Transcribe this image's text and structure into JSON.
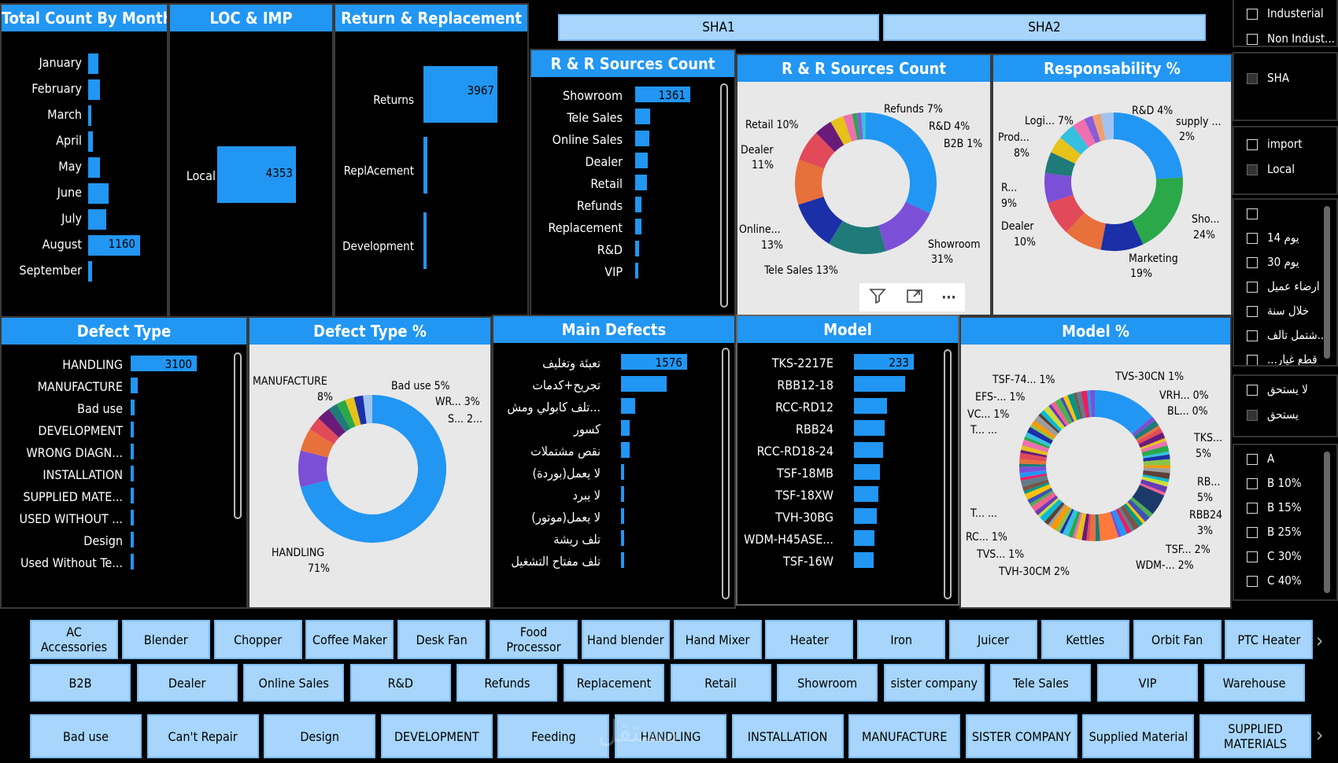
{
  "month_panel": {
    "title": "Total Count By Month",
    "months": [
      "January",
      "February",
      "March",
      "April",
      "May",
      "June",
      "July",
      "August",
      "September"
    ],
    "values": [
      220,
      270,
      40,
      100,
      260,
      450,
      400,
      1160,
      80
    ],
    "label_value": "1160"
  },
  "loc_panel": {
    "title": "LOC & IMP",
    "category": "Local",
    "value": "4353"
  },
  "rr_panel": {
    "title": "Return & Replacement",
    "categories": [
      "Returns",
      "ReplAcement",
      "Development"
    ],
    "values": [
      3967,
      190,
      130
    ],
    "label_value": "3967"
  },
  "top_buttons": {
    "sha1": "SHA1",
    "sha2": "SHA2"
  },
  "sources_count": {
    "title": "R & R Sources Count",
    "categories": [
      "Showroom",
      "Tele Sales",
      "Online Sales",
      "Dealer",
      "Retail",
      "Refunds",
      "Replacement",
      "R&D",
      "VIP"
    ],
    "values": [
      1361,
      370,
      350,
      320,
      300,
      160,
      150,
      100,
      60
    ],
    "label_value": "1361"
  },
  "sources_donut": {
    "title": "R & R Sources Count",
    "labels": [
      "Refunds 7%",
      "R&D 4%",
      "B2B 1%",
      "Retail 10%",
      "Dealer",
      "11%",
      "Online...",
      "13%",
      "Tele Sales 13%",
      "Showroom",
      "31%"
    ],
    "slices": [
      {
        "v": 31,
        "c": "#2196f3"
      },
      {
        "v": 13,
        "c": "#7b4fd6"
      },
      {
        "v": 13,
        "c": "#1f7a7a"
      },
      {
        "v": 11,
        "c": "#1b2fa8"
      },
      {
        "v": 10,
        "c": "#e8703a"
      },
      {
        "v": 7,
        "c": "#e24a5a"
      },
      {
        "v": 4,
        "c": "#6a1b7a"
      },
      {
        "v": 3,
        "c": "#e6c21a"
      },
      {
        "v": 2,
        "c": "#ef6fb0"
      },
      {
        "v": 1,
        "c": "#2aa84a"
      },
      {
        "v": 1,
        "c": "#8a5cd6"
      },
      {
        "v": 1,
        "c": "#35c0e0"
      }
    ]
  },
  "resp_donut": {
    "title": "Responsability %",
    "labels": [
      "R&D 4%",
      "supply ...",
      "2%",
      "Logi... 7%",
      "Prod...",
      "8%",
      "R...",
      "9%",
      "Dealer",
      "10%",
      "Sho...",
      "24%",
      "Marketing",
      "19%"
    ],
    "slices": [
      {
        "v": 24,
        "c": "#2196f3"
      },
      {
        "v": 19,
        "c": "#2aa84a"
      },
      {
        "v": 10,
        "c": "#1b2fa8"
      },
      {
        "v": 9,
        "c": "#e8703a"
      },
      {
        "v": 8,
        "c": "#e24a5a"
      },
      {
        "v": 7,
        "c": "#7b4fd6"
      },
      {
        "v": 5,
        "c": "#1f7a7a"
      },
      {
        "v": 4,
        "c": "#e6c21a"
      },
      {
        "v": 4,
        "c": "#35c0e0"
      },
      {
        "v": 3,
        "c": "#ef6fb0"
      },
      {
        "v": 2,
        "c": "#8a5cd6"
      },
      {
        "v": 2,
        "c": "#f0a070"
      },
      {
        "v": 3,
        "c": "#a0c4f0"
      }
    ]
  },
  "defect_type": {
    "title": "Defect Type",
    "categories": [
      "HANDLING",
      "MANUFACTURE",
      "Bad use",
      "DEVELOPMENT",
      "WRONG DIAGN...",
      "INSTALLATION",
      "SUPPLIED MATE...",
      "USED WITHOUT ...",
      "Design",
      "Used Without Te..."
    ],
    "values": [
      3100,
      340,
      190,
      130,
      110,
      100,
      90,
      80,
      60,
      50
    ],
    "label_value": "3100"
  },
  "defect_donut": {
    "title": "Defect Type %",
    "labels": [
      "MANUFACTURE",
      "8%",
      "Bad use 5%",
      "WR... 3%",
      "S... 2...",
      "HANDLING",
      "71%"
    ],
    "slices": [
      {
        "v": 71,
        "c": "#2196f3"
      },
      {
        "v": 8,
        "c": "#7b4fd6"
      },
      {
        "v": 5,
        "c": "#e8703a"
      },
      {
        "v": 3,
        "c": "#e24a5a"
      },
      {
        "v": 3,
        "c": "#6a1b7a"
      },
      {
        "v": 2,
        "c": "#1f7a7a"
      },
      {
        "v": 2,
        "c": "#2aa84a"
      },
      {
        "v": 2,
        "c": "#e6c21a"
      },
      {
        "v": 2,
        "c": "#1b2fa8"
      },
      {
        "v": 2,
        "c": "#a0c4f0"
      }
    ]
  },
  "main_defects": {
    "title": "Main Defects",
    "categories": [
      "تعبئة وتغليف",
      "تجريح+كدمات",
      "تلف كابولي ومش...",
      "كسور",
      "نقص مشتملات",
      "لا يعمل(بوردة)",
      "لا يبرد",
      "لا يعمل(موتور)",
      "تلف ريشة",
      "تلف مفتاح التشغيل"
    ],
    "values": [
      1576,
      1080,
      340,
      210,
      200,
      80,
      60,
      50,
      40,
      30
    ],
    "label_value": "1576"
  },
  "model": {
    "title": "Model",
    "categories": [
      "TKS-2217E",
      "RBB12-18",
      "RCC-RD12",
      "RBB24",
      "RCC-RD18-24",
      "TSF-18MB",
      "TSF-18XW",
      "TVH-30BG",
      "WDM-H45ASE...",
      "TSF-16W"
    ],
    "values": [
      233,
      198,
      130,
      120,
      112,
      100,
      95,
      90,
      80,
      78
    ],
    "label_value": "233"
  },
  "model_donut": {
    "title": "Model %",
    "labels": [
      "TSF-74... 1%",
      "TVS-30CN 1%",
      "EFS-... 1%",
      "VRH... 0%",
      "VC... 1%",
      "BL... 0%",
      "T... ...",
      "TKS...",
      "5%",
      "RB...",
      "5%",
      "RBB24",
      "3%",
      "T... ...",
      "RC... 1%",
      "TSF... 2%",
      "TVS... 1%",
      "WDM-... 2%",
      "TVH-30CM 2%"
    ]
  },
  "toolbar": {
    "filter": "filter-icon",
    "focus": "focus-icon",
    "more": "···"
  },
  "slicer_top": [
    "Industerial",
    "Non Indust...",
    "SHA",
    "import",
    "Local"
  ],
  "slicer_days": [
    "",
    "14 يوم",
    "30 يوم",
    "ارضاء عميل",
    "خلال سنة",
    "شتمل تالف...",
    "...قطع غيار"
  ],
  "slicer_entitled": [
    "لا يستحق",
    "يستحق"
  ],
  "slicer_grades": [
    "A",
    "B 10%",
    "B 15%",
    "B 25%",
    "C 30%",
    "C 40%"
  ],
  "products": [
    "AC Accessories",
    "Blender",
    "Chopper",
    "Coffee Maker",
    "Desk Fan",
    "Food Processor",
    "Hand blender",
    "Hand Mixer",
    "Heater",
    "Iron",
    "Juicer",
    "Kettles",
    "Orbit Fan",
    "PTC Heater"
  ],
  "channels": [
    "B2B",
    "Dealer",
    "Online Sales",
    "R&D",
    "Refunds",
    "Replacement",
    "Retail",
    "Showroom",
    "sister company",
    "Tele Sales",
    "VIP",
    "Warehouse"
  ],
  "defects_row": [
    "Bad use",
    "Can't Repair",
    "Design",
    "DEVELOPMENT",
    "Feeding",
    "HANDLING",
    "INSTALLATION",
    "MANUFACTURE",
    "SISTER COMPANY",
    "Supplied Material",
    "SUPPLIED MATERIALS"
  ],
  "watermark": "مستقل"
}
